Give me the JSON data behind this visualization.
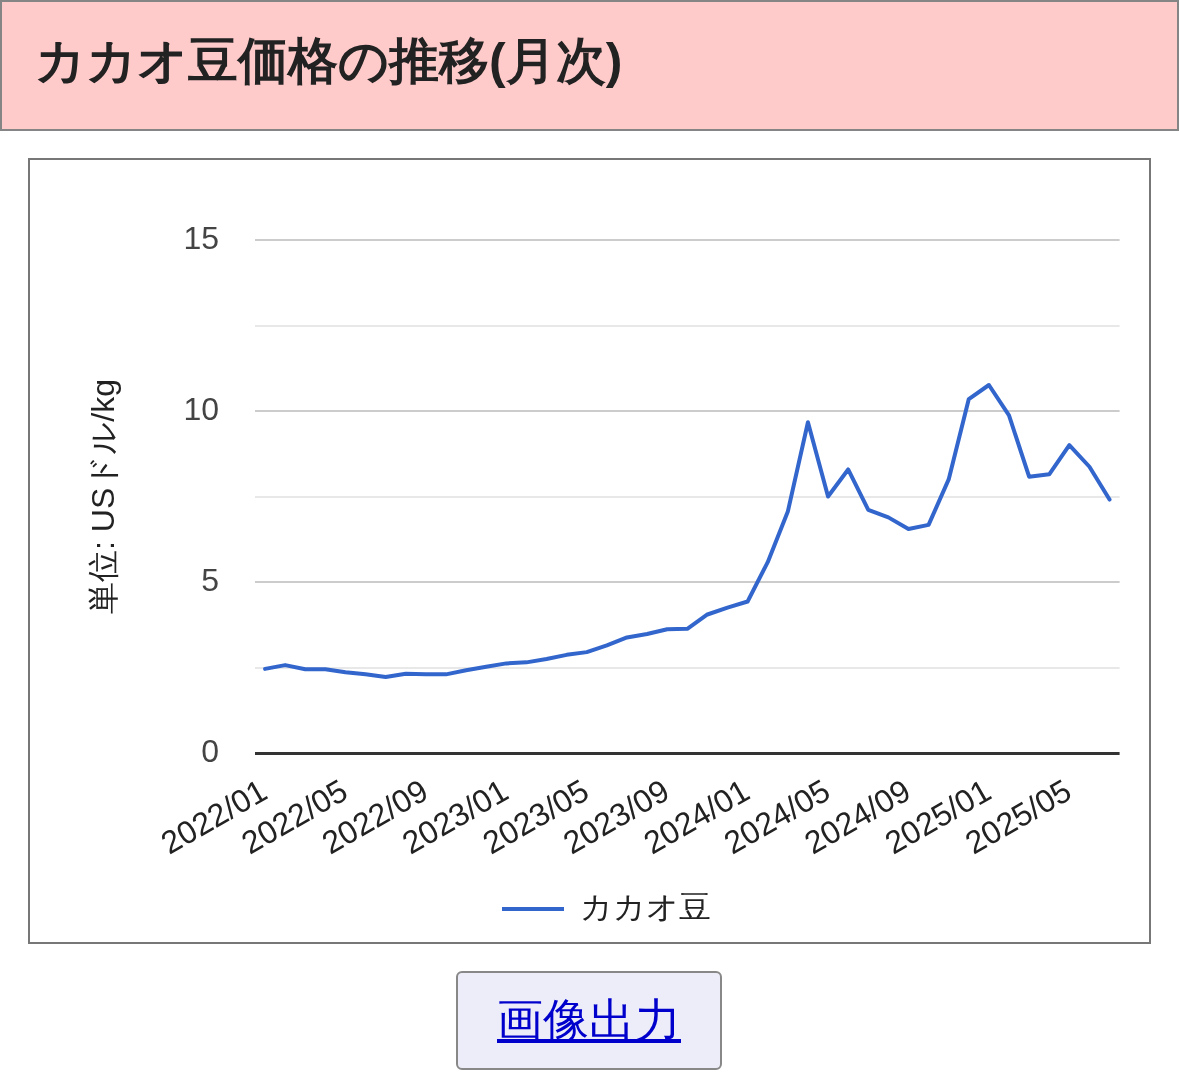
{
  "chart_data": {
    "type": "line",
    "title": "カカオ豆価格の推移(月次)",
    "ylabel": "単位: USドル/kg",
    "annotations": [
      "画像出力"
    ],
    "categories": [
      "2022/01",
      null,
      null,
      null,
      "2022/05",
      null,
      null,
      null,
      "2022/09",
      null,
      null,
      null,
      "2023/01",
      null,
      null,
      null,
      "2023/05",
      null,
      null,
      null,
      "2023/09",
      null,
      null,
      null,
      "2024/01",
      null,
      null,
      null,
      "2024/05",
      null,
      null,
      null,
      "2024/09",
      null,
      null,
      null,
      "2025/01",
      null,
      null,
      null,
      "2025/05",
      null,
      null
    ],
    "series": [
      {
        "name": "カカオ豆",
        "color": "#3366cc",
        "values": [
          2.46,
          2.57,
          2.45,
          2.45,
          2.36,
          2.3,
          2.22,
          2.32,
          2.3,
          2.3,
          2.42,
          2.52,
          2.62,
          2.65,
          2.75,
          2.87,
          2.95,
          3.15,
          3.38,
          3.48,
          3.62,
          3.63,
          4.05,
          4.25,
          4.43,
          5.58,
          7.06,
          9.67,
          7.5,
          8.29,
          7.11,
          6.89,
          6.55,
          6.67,
          8.0,
          10.35,
          10.76,
          9.87,
          8.08,
          8.15,
          9.0,
          8.37,
          7.41
        ]
      }
    ],
    "ylim": [
      0,
      15
    ],
    "yticks": [
      0,
      {
        "value": 2.5,
        "label": null
      },
      5,
      {
        "value": 7.5,
        "label": null
      },
      10,
      {
        "value": 12.5,
        "label": null
      },
      15
    ],
    "grid": "y",
    "legend": "bottom",
    "marker": "none",
    "line_style": "solid"
  }
}
